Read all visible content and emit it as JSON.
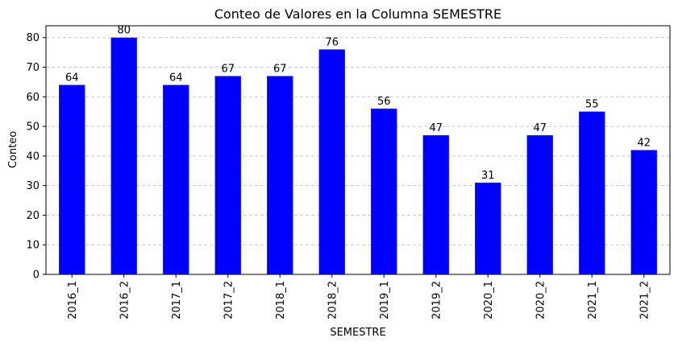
{
  "chart_data": {
    "type": "bar",
    "title": "Conteo de Valores en la Columna SEMESTRE",
    "xlabel": "SEMESTRE",
    "ylabel": "Conteo",
    "categories": [
      "2016_1",
      "2016_2",
      "2017_1",
      "2017_2",
      "2018_1",
      "2018_2",
      "2019_1",
      "2019_2",
      "2020_1",
      "2020_2",
      "2021_1",
      "2021_2"
    ],
    "values": [
      64,
      80,
      64,
      67,
      67,
      76,
      56,
      47,
      31,
      47,
      55,
      42
    ],
    "ylim": [
      0,
      84
    ],
    "yticks": [
      0,
      10,
      20,
      30,
      40,
      50,
      60,
      70,
      80
    ],
    "grid": "y-dashed",
    "bar_color": "#0000ff",
    "grid_color": "#c8c8c8"
  }
}
